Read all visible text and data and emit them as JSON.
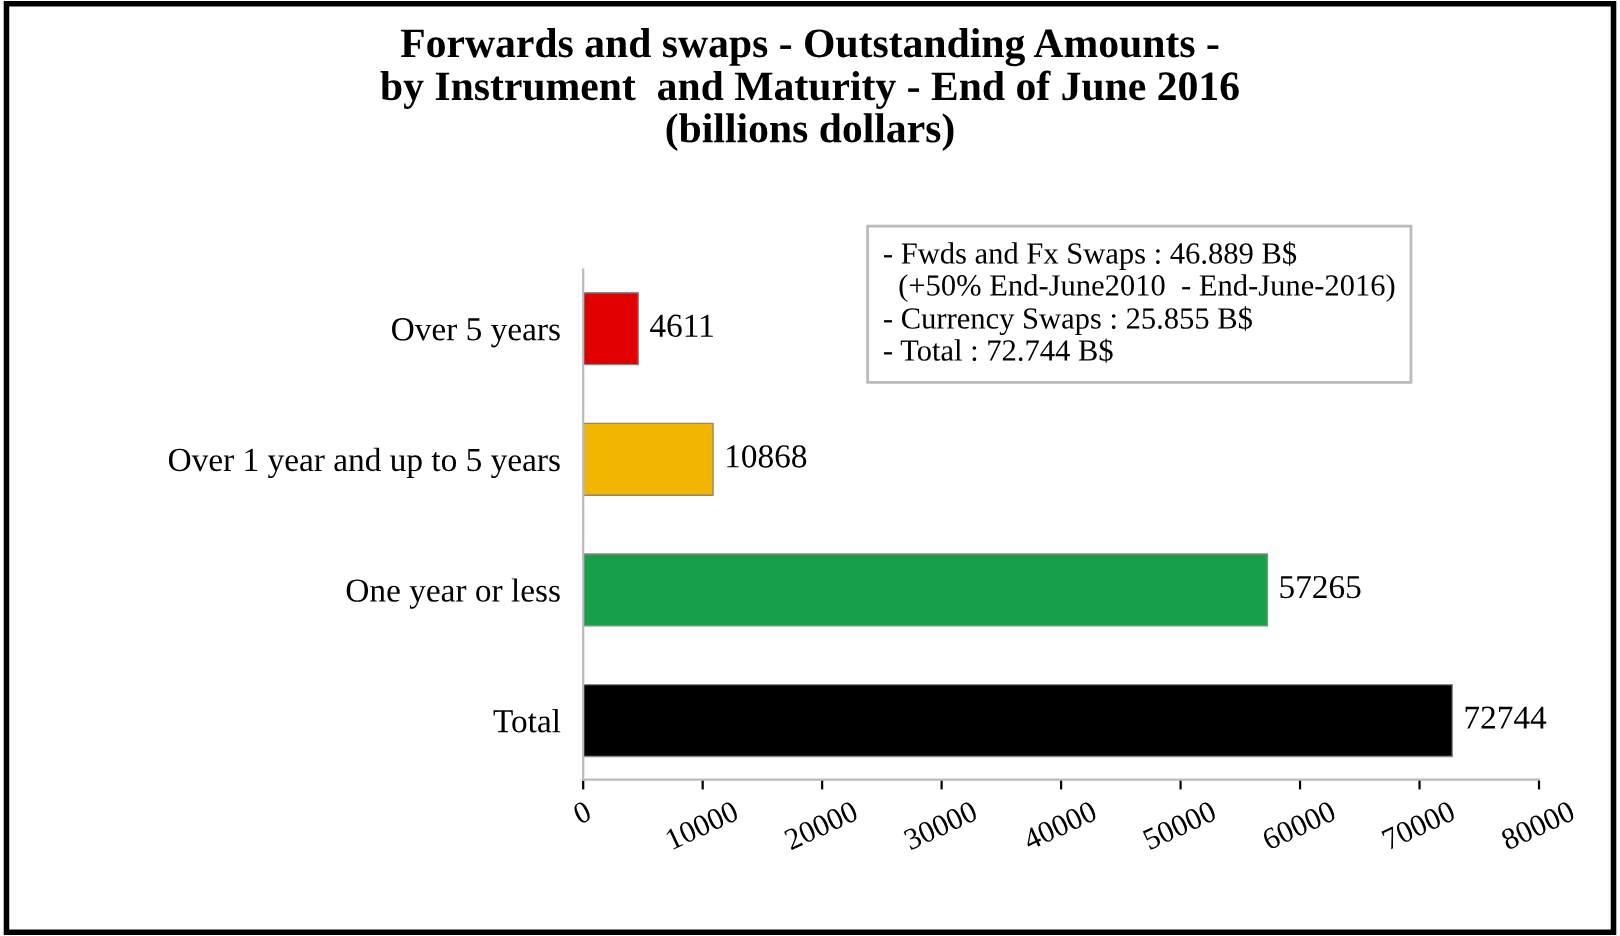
{
  "chart_data": {
    "type": "bar",
    "orientation": "horizontal",
    "title": "Forwards and swaps - Outstanding Amounts -\nby Instrument  and Maturity - End of June 2016\n(billions dollars)",
    "categories": [
      "Over 5 years",
      "Over 1 year and up to 5 years",
      "One year or less",
      "Total"
    ],
    "values": [
      4611,
      10868,
      57265,
      72744
    ],
    "colors": [
      "#e00000",
      "#f2b600",
      "#16a04a",
      "#000000"
    ],
    "xlim": [
      0,
      80000
    ],
    "xticks": [
      0,
      10000,
      20000,
      30000,
      40000,
      50000,
      60000,
      70000,
      80000
    ],
    "grid": false,
    "data_labels": true,
    "annotations": [
      "- Fwds and Fx Swaps : 46.889 B$\n  (+50% End-June2010  - End-June-2016)\n- Currency Swaps : 25.855 B$\n- Total : 72.744 B$"
    ]
  }
}
